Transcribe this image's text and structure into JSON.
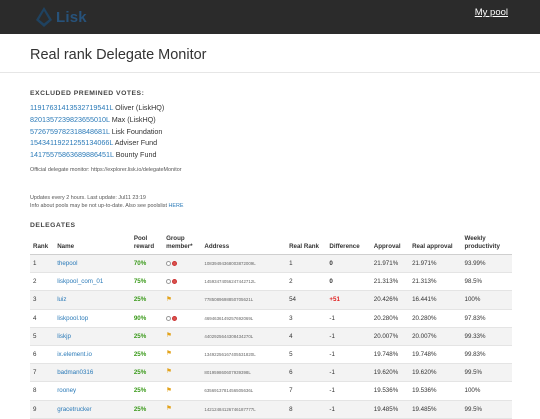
{
  "header": {
    "logo_text": "Lisk",
    "my_pool_label": "My pool"
  },
  "page_title": "Real rank Delegate Monitor",
  "excluded": {
    "heading": "EXCLUDED PREMINED VOTES:",
    "items": [
      {
        "address": "11917631413532719541L",
        "name": "Oliver (LiskHQ)"
      },
      {
        "address": "8201357239823655010L",
        "name": "Max (LiskHQ)"
      },
      {
        "address": "5726759782318848681L",
        "name": "Lisk Foundation"
      },
      {
        "address": "15434119221255134066L",
        "name": "Adviser Fund"
      },
      {
        "address": "14175575863689886451L",
        "name": "Bounty Fund"
      }
    ],
    "official_monitor": "Official delegate monitor: https://explorer.lisk.io/delegateMonitor"
  },
  "updates": {
    "line1": "Updates every 2 hours. Last update: Jul11 23:19",
    "line2_text": "Info about pools may be not up-to-date. Also see poolslist",
    "line2_link": "HERE"
  },
  "delegates": {
    "heading": "DELEGATES",
    "columns": {
      "rank": "Rank",
      "name": "Name",
      "pool_reward": "Pool reward",
      "group_member": "Group member*",
      "address": "Address",
      "real_rank": "Real Rank",
      "difference": "Difference",
      "approval": "Approval",
      "real_approval": "Real approval",
      "weekly_productivity": "Weekly productivity"
    },
    "rows": [
      {
        "rank": "1",
        "name": "thepool",
        "reward": "70%",
        "group": "circles",
        "address": "10839494368003872009L",
        "real_rank": "1",
        "difference": "0",
        "diff_style": "zero",
        "approval": "21.971%",
        "real_approval": "21.971%",
        "productivity": "93.99%"
      },
      {
        "rank": "2",
        "name": "liskpool_com_01",
        "reward": "75%",
        "group": "circles",
        "address": "14593474056247442712L",
        "real_rank": "2",
        "difference": "0",
        "diff_style": "zero",
        "approval": "21.313%",
        "real_approval": "21.313%",
        "productivity": "98.5%"
      },
      {
        "rank": "3",
        "name": "luiz",
        "reward": "25%",
        "group": "pin",
        "address": "7785089698850705621L",
        "real_rank": "54",
        "difference": "+51",
        "diff_style": "pos",
        "approval": "20.426%",
        "real_approval": "16.441%",
        "productivity": "100%"
      },
      {
        "rank": "4",
        "name": "liskpool.top",
        "reward": "90%",
        "group": "circles",
        "address": "4694636149257692069L",
        "real_rank": "3",
        "difference": "-1",
        "diff_style": "normal",
        "approval": "20.280%",
        "real_approval": "20.280%",
        "productivity": "97.83%"
      },
      {
        "rank": "5",
        "name": "liskjp",
        "reward": "25%",
        "group": "pin",
        "address": "4402925644308434270L",
        "real_rank": "4",
        "difference": "-1",
        "diff_style": "normal",
        "approval": "20.007%",
        "real_approval": "20.007%",
        "productivity": "99.33%"
      },
      {
        "rank": "6",
        "name": "ix.element.io",
        "reward": "25%",
        "group": "pin",
        "address": "13492256167405531820L",
        "real_rank": "5",
        "difference": "-1",
        "diff_style": "normal",
        "approval": "19.748%",
        "real_approval": "19.748%",
        "productivity": "99.83%"
      },
      {
        "rank": "7",
        "name": "badman0316",
        "reward": "25%",
        "group": "pin",
        "address": "801959860607939398L",
        "real_rank": "6",
        "difference": "-1",
        "diff_style": "normal",
        "approval": "19.620%",
        "real_approval": "19.620%",
        "productivity": "99.5%"
      },
      {
        "rank": "8",
        "name": "rooney",
        "reward": "25%",
        "group": "pin",
        "address": "6356913781456505636L",
        "real_rank": "7",
        "difference": "-1",
        "diff_style": "normal",
        "approval": "19.536%",
        "real_approval": "19.536%",
        "productivity": "100%"
      },
      {
        "rank": "9",
        "name": "gracetrucker",
        "reward": "25%",
        "group": "pin",
        "address": "14212484126746187777L",
        "real_rank": "8",
        "difference": "-1",
        "diff_style": "normal",
        "approval": "19.485%",
        "real_approval": "19.485%",
        "productivity": "99.5%"
      }
    ]
  },
  "colors": {
    "header_bg": "#2b2b2b",
    "link": "#2a7ab8",
    "reward_green": "#3a9a1a",
    "diff_red": "#e02020",
    "pin_orange": "#e2a21a"
  }
}
